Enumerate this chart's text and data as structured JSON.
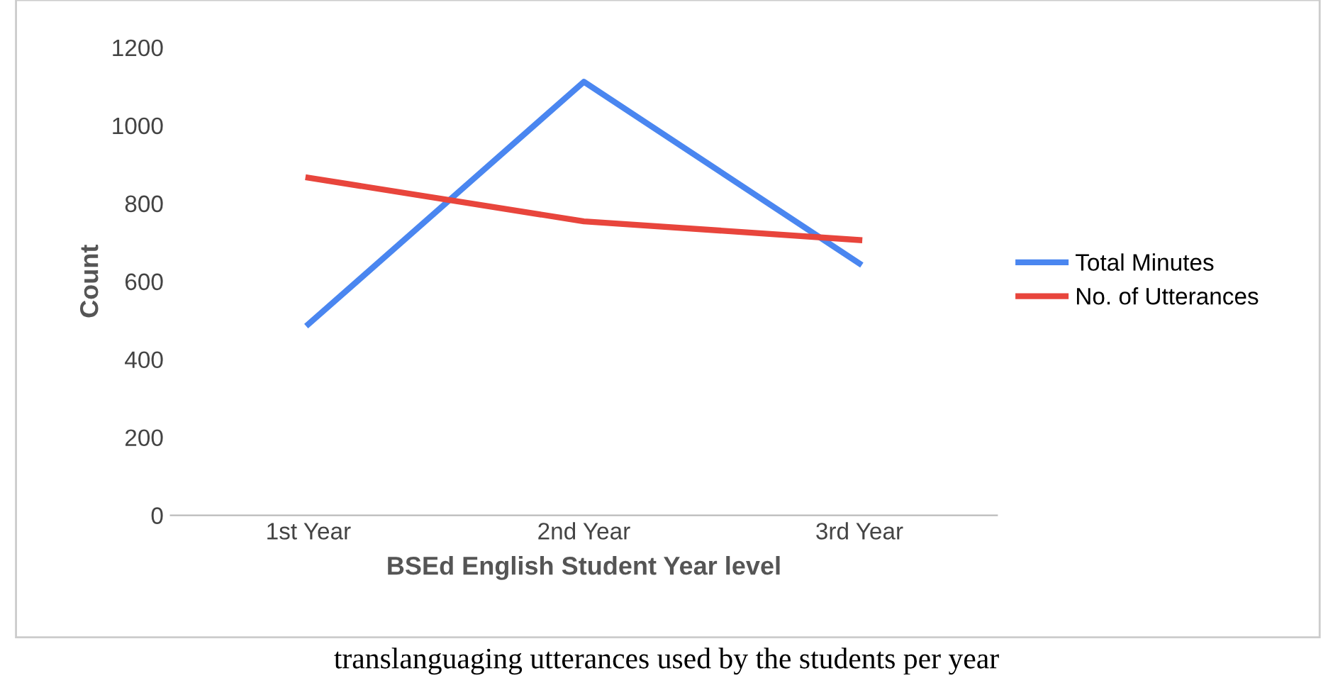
{
  "chart_data": {
    "type": "line",
    "xlabel": "BSEd English Student Year level",
    "ylabel": "Count",
    "categories": [
      "1st Year",
      "2nd Year",
      "3rd Year"
    ],
    "series": [
      {
        "name": "Total Minutes",
        "color": "#4a86f0",
        "values": [
          490,
          1112,
          646
        ]
      },
      {
        "name": "No. of Utterances",
        "color": "#e8453c",
        "values": [
          866,
          754,
          706
        ]
      }
    ],
    "ylim": [
      0,
      1200
    ],
    "yticks": [
      0,
      200,
      400,
      600,
      800,
      1000,
      1200
    ],
    "grid": false,
    "legend": "right",
    "marker": "none",
    "line_style": "solid",
    "annotations": [
      "translanguaging utterances used by the students per year"
    ]
  }
}
